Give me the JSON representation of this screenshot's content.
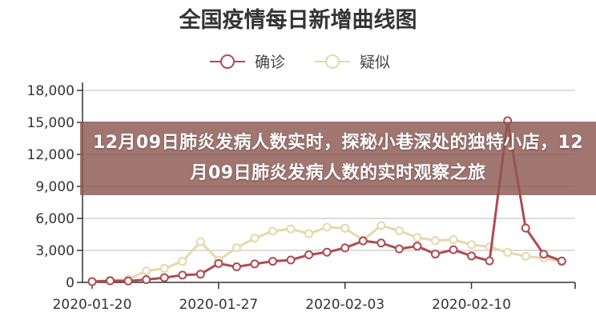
{
  "chart_data": {
    "type": "line",
    "title": "全国疫情每日新增曲线图",
    "xlabel": "",
    "ylabel": "",
    "x": [
      "2020-01-20",
      "2020-01-21",
      "2020-01-22",
      "2020-01-23",
      "2020-01-24",
      "2020-01-25",
      "2020-01-26",
      "2020-01-27",
      "2020-01-28",
      "2020-01-29",
      "2020-01-30",
      "2020-01-31",
      "2020-02-01",
      "2020-02-02",
      "2020-02-03",
      "2020-02-04",
      "2020-02-05",
      "2020-02-06",
      "2020-02-07",
      "2020-02-08",
      "2020-02-09",
      "2020-02-10",
      "2020-02-11",
      "2020-02-12",
      "2020-02-13",
      "2020-02-14",
      "2020-02-15"
    ],
    "x_tick_labels": [
      "2020-01-20",
      "2020-01-27",
      "2020-02-03",
      "2020-02-10"
    ],
    "y_tick_labels": [
      "0",
      "3,000",
      "6,000",
      "9,000",
      "12,000",
      "15,000",
      "18,000"
    ],
    "ylim": [
      0,
      18000
    ],
    "grid": "horizontal",
    "legend_position": "top-center",
    "series": [
      {
        "name": "确诊",
        "color": "#b04a52",
        "values": [
          77,
          149,
          131,
          259,
          444,
          688,
          769,
          1771,
          1459,
          1737,
          1982,
          2102,
          2590,
          2829,
          3235,
          3887,
          3694,
          3143,
          3399,
          2656,
          3062,
          2478,
          2015,
          15152,
          5090,
          2641,
          2009
        ]
      },
      {
        "name": "疑似",
        "color": "#e3d9aa",
        "values": [
          60,
          200,
          300,
          1072,
          1309,
          1965,
          3806,
          2077,
          3248,
          4148,
          4812,
          5019,
          4562,
          5173,
          5072,
          3971,
          5328,
          4833,
          4214,
          3916,
          4008,
          3536,
          3342,
          2807,
          2450,
          2277,
          1918
        ]
      }
    ]
  },
  "banner": {
    "text": "12月09日肺炎发病人数实时，探秘小巷深处的独特小店，12月09日肺炎发病人数的实时观察之旅"
  }
}
